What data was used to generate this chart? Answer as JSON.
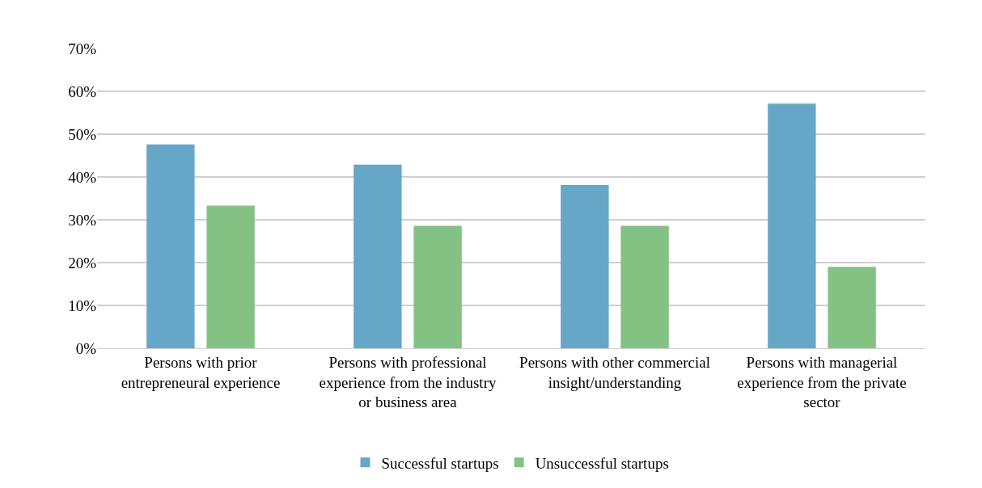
{
  "chart_data": {
    "type": "bar",
    "categories": [
      "Persons with prior entrepreneural experience",
      "Persons with professional experience from the industry or business area",
      "Persons with other commercial insight/understanding",
      "Persons with managerial experience from the private sector"
    ],
    "series": [
      {
        "name": "Successful startups",
        "color": "#66a7c8",
        "values": [
          47.6,
          42.9,
          38.1,
          57.1
        ]
      },
      {
        "name": "Unsuccessful startups",
        "color": "#84c283",
        "values": [
          33.3,
          28.6,
          28.6,
          19.0
        ]
      }
    ],
    "ylim": [
      0,
      70
    ],
    "yticks": [
      {
        "value": 0,
        "label": "0%"
      },
      {
        "value": 10,
        "label": "10%"
      },
      {
        "value": 20,
        "label": "20%"
      },
      {
        "value": 30,
        "label": "30%"
      },
      {
        "value": 40,
        "label": "40%"
      },
      {
        "value": 50,
        "label": "50%"
      },
      {
        "value": 60,
        "label": "60%"
      },
      {
        "value": 70,
        "label": "70%"
      }
    ],
    "grid": "y",
    "legend": "bottom"
  }
}
